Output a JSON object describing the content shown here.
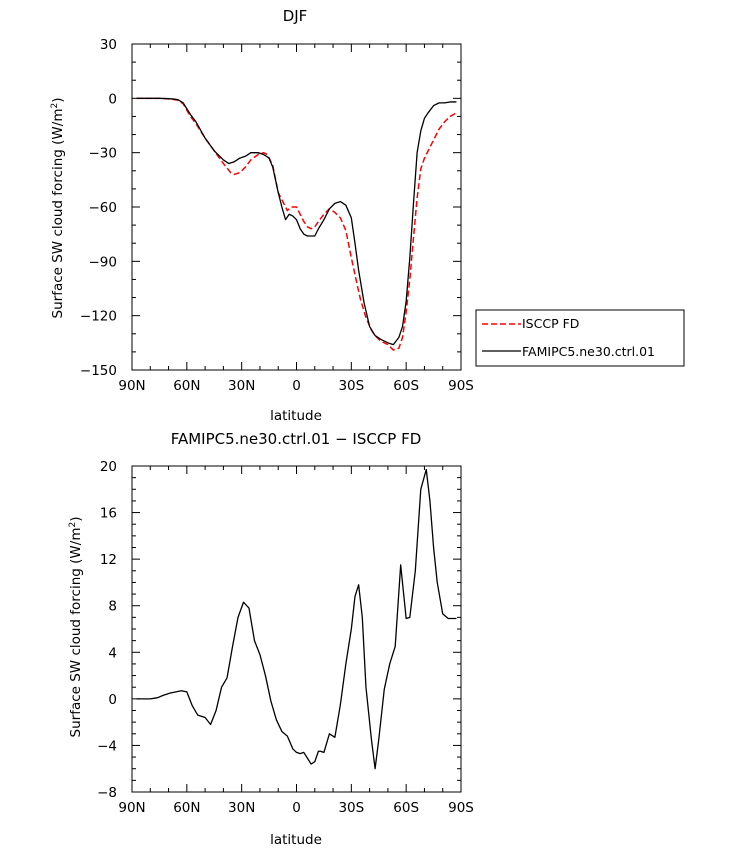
{
  "chart_data": [
    {
      "type": "line",
      "title": "DJF",
      "xlabel": "latitude",
      "ylabel": "Surface SW cloud forcing (W/m²)",
      "ylabel_main": "Surface SW cloud forcing (W/m",
      "ylabel_sup": "2",
      "ylabel_close": ")",
      "xlim": [
        -90,
        90
      ],
      "ylim": [
        -150,
        30
      ],
      "xticks": [
        -90,
        -60,
        -30,
        0,
        30,
        60,
        90
      ],
      "xtick_labels": [
        "90N",
        "60N",
        "30N",
        "0",
        "30S",
        "60S",
        "90S"
      ],
      "yticks": [
        30,
        0,
        -30,
        -60,
        -90,
        -120,
        -150
      ],
      "ytick_labels": [
        "30",
        "0",
        "−30",
        "−60",
        "−90",
        "−120",
        "−150"
      ],
      "legend_position": "outside-right",
      "series": [
        {
          "name": "ISCCP FD",
          "color": "#ff0000",
          "dash": true,
          "x": [
            -87.5,
            -80,
            -75,
            -70,
            -67,
            -65,
            -62,
            -58,
            -55,
            -50,
            -45,
            -40,
            -36,
            -34,
            -31,
            -28,
            -25,
            -21,
            -18,
            -16,
            -13,
            -10,
            -7,
            -5,
            -3,
            0,
            2,
            4,
            6,
            8,
            10,
            12,
            15,
            18,
            21,
            24,
            27,
            30,
            33,
            35,
            38,
            41,
            43,
            46,
            50,
            53,
            56,
            58,
            60,
            62,
            64,
            66,
            68,
            70,
            72,
            75,
            78,
            81,
            84,
            87.5
          ],
          "y": [
            0,
            0,
            0,
            -0.3,
            -0.7,
            -1,
            -3,
            -10,
            -14,
            -22,
            -29,
            -36,
            -41,
            -42,
            -41,
            -38,
            -34,
            -31,
            -30,
            -31,
            -37,
            -52,
            -58,
            -62,
            -60,
            -60,
            -64,
            -68,
            -71,
            -72,
            -71,
            -68,
            -64,
            -61,
            -63,
            -66,
            -73,
            -88,
            -102,
            -111,
            -121,
            -128,
            -131,
            -134,
            -136,
            -139,
            -138,
            -132,
            -118,
            -100,
            -77,
            -55,
            -39,
            -33,
            -29,
            -23,
            -17,
            -13,
            -10,
            -8
          ]
        },
        {
          "name": "FAMIPC5.ne30.ctrl.01",
          "color": "#000000",
          "dash": false,
          "x": [
            -87.5,
            -80,
            -75,
            -70,
            -67,
            -65,
            -62,
            -58,
            -55,
            -50,
            -45,
            -40,
            -37,
            -34,
            -31,
            -28,
            -25,
            -21,
            -18,
            -15,
            -13,
            -10,
            -8,
            -6,
            -4,
            -2,
            0,
            2,
            4,
            6,
            8,
            10,
            12,
            15,
            18,
            21,
            24,
            27,
            30,
            32,
            34,
            37,
            40,
            43,
            46,
            50,
            53,
            56,
            58,
            60,
            62,
            64,
            66,
            68,
            70,
            72,
            75,
            78,
            81,
            84,
            87.5
          ],
          "y": [
            0,
            0,
            0,
            -0.2,
            -0.4,
            -0.7,
            -2.5,
            -9,
            -13,
            -22,
            -29,
            -34,
            -36,
            -35,
            -33,
            -32,
            -30,
            -30,
            -31,
            -33,
            -38,
            -52,
            -60,
            -67,
            -64,
            -65,
            -67,
            -72,
            -75,
            -76,
            -76,
            -76,
            -72,
            -67,
            -61,
            -58,
            -57,
            -59,
            -66,
            -80,
            -95,
            -113,
            -126,
            -131,
            -133,
            -135,
            -136,
            -132,
            -126,
            -112,
            -88,
            -58,
            -30,
            -18,
            -11,
            -8,
            -4,
            -2.5,
            -2.5,
            -2,
            -2
          ]
        }
      ]
    },
    {
      "type": "line",
      "title": "FAMIPC5.ne30.ctrl.01 − ISCCP FD",
      "xlabel": "latitude",
      "ylabel": "Surface SW cloud forcing (W/m²)",
      "ylabel_main": "Surface SW cloud forcing (W/m",
      "ylabel_sup": "2",
      "ylabel_close": ")",
      "xlim": [
        -90,
        90
      ],
      "ylim": [
        -8,
        20
      ],
      "xticks": [
        -90,
        -60,
        -30,
        0,
        30,
        60,
        90
      ],
      "xtick_labels": [
        "90N",
        "60N",
        "30N",
        "0",
        "30S",
        "60S",
        "90S"
      ],
      "yticks": [
        20,
        16,
        12,
        8,
        4,
        0,
        -4,
        -8
      ],
      "ytick_labels": [
        "20",
        "16",
        "12",
        "8",
        "4",
        "0",
        "−4",
        "−8"
      ],
      "series": [
        {
          "color": "#000000",
          "dash": false,
          "x": [
            -87.5,
            -80,
            -76,
            -73,
            -69,
            -66,
            -63,
            -60,
            -57,
            -54,
            -50,
            -47,
            -44,
            -41,
            -38,
            -35,
            -32,
            -29,
            -26,
            -23,
            -20,
            -17,
            -14,
            -11,
            -8,
            -5,
            -2,
            0,
            2,
            4,
            6,
            8,
            10,
            12,
            13,
            15,
            18,
            21,
            24,
            27,
            30,
            32,
            34,
            36,
            38,
            41,
            43,
            45,
            48,
            51,
            54,
            57,
            60,
            62,
            65,
            68,
            71,
            73,
            75,
            77,
            80,
            83,
            87.5
          ],
          "y": [
            0,
            0,
            0.1,
            0.3,
            0.5,
            0.6,
            0.7,
            0.6,
            -0.6,
            -1.4,
            -1.6,
            -2.2,
            -1.0,
            1.0,
            1.8,
            4.5,
            7.0,
            8.3,
            7.8,
            5.0,
            3.8,
            2.0,
            -0.2,
            -1.8,
            -2.8,
            -3.2,
            -4.3,
            -4.6,
            -4.7,
            -4.6,
            -5.1,
            -5.6,
            -5.4,
            -4.5,
            -4.5,
            -4.6,
            -3.0,
            -3.3,
            -0.5,
            3.0,
            6.0,
            8.8,
            9.8,
            7.0,
            1.0,
            -3.5,
            -6.0,
            -3.5,
            0.8,
            3.0,
            4.5,
            11.5,
            6.9,
            7.0,
            11.0,
            18.0,
            19.7,
            17.0,
            13.0,
            10.0,
            7.3,
            6.9,
            6.9
          ]
        }
      ]
    }
  ]
}
